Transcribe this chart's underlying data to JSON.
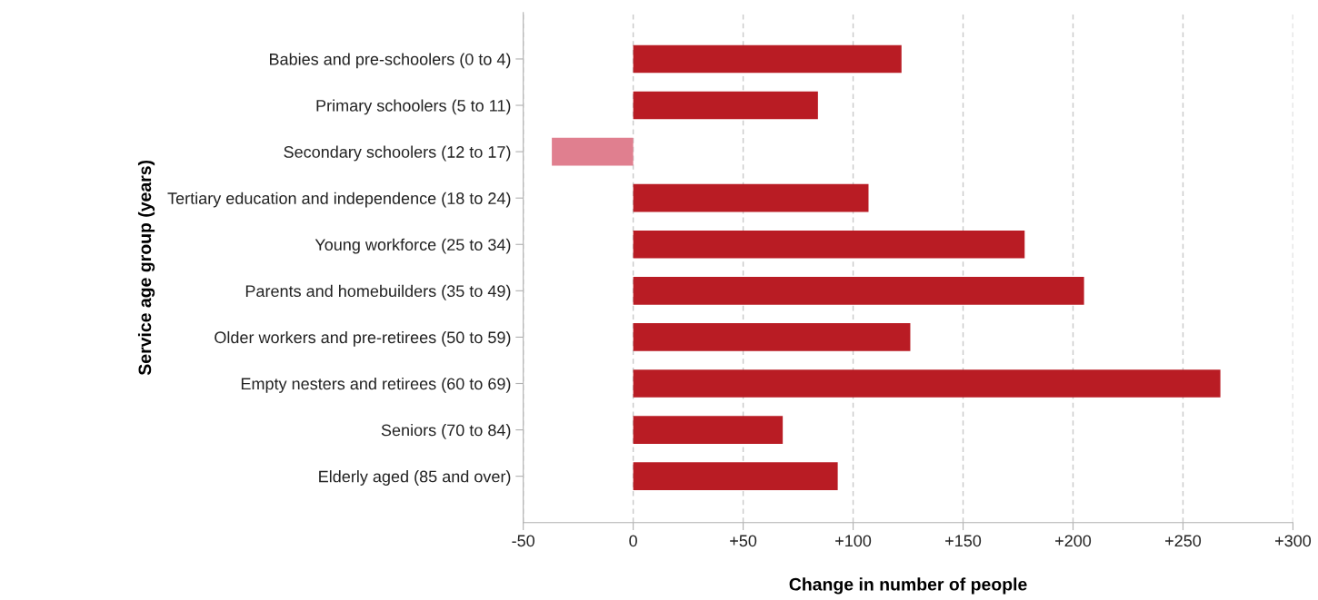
{
  "chart_data": {
    "type": "bar",
    "orientation": "horizontal",
    "xlabel": "Change in number of people",
    "ylabel": "Service age group (years)",
    "categories": [
      "Babies and pre-schoolers (0 to 4)",
      "Primary schoolers (5 to 11)",
      "Secondary schoolers (12 to 17)",
      "Tertiary education and independence (18 to 24)",
      "Young workforce (25 to 34)",
      "Parents and homebuilders (35 to 49)",
      "Older workers and pre-retirees (50 to 59)",
      "Empty nesters and retirees (60 to 69)",
      "Seniors (70 to 84)",
      "Elderly aged (85 and over)"
    ],
    "values": [
      122,
      84,
      -37,
      107,
      178,
      205,
      126,
      267,
      68,
      93
    ],
    "colors": [
      "#b91c24",
      "#b91c24",
      "#e07f8f",
      "#b91c24",
      "#b91c24",
      "#b91c24",
      "#b91c24",
      "#b91c24",
      "#b91c24",
      "#b91c24"
    ],
    "xlim": [
      -50,
      300
    ],
    "xticks": [
      -50,
      0,
      {
        "value": 50,
        "label": "+50"
      },
      {
        "value": 100,
        "label": "+100"
      },
      {
        "value": 150,
        "label": "+150"
      },
      {
        "value": 200,
        "label": "+200"
      },
      {
        "value": 250,
        "label": "+250"
      },
      {
        "value": 300,
        "label": "+300"
      }
    ],
    "grid": "x",
    "legend": false
  }
}
